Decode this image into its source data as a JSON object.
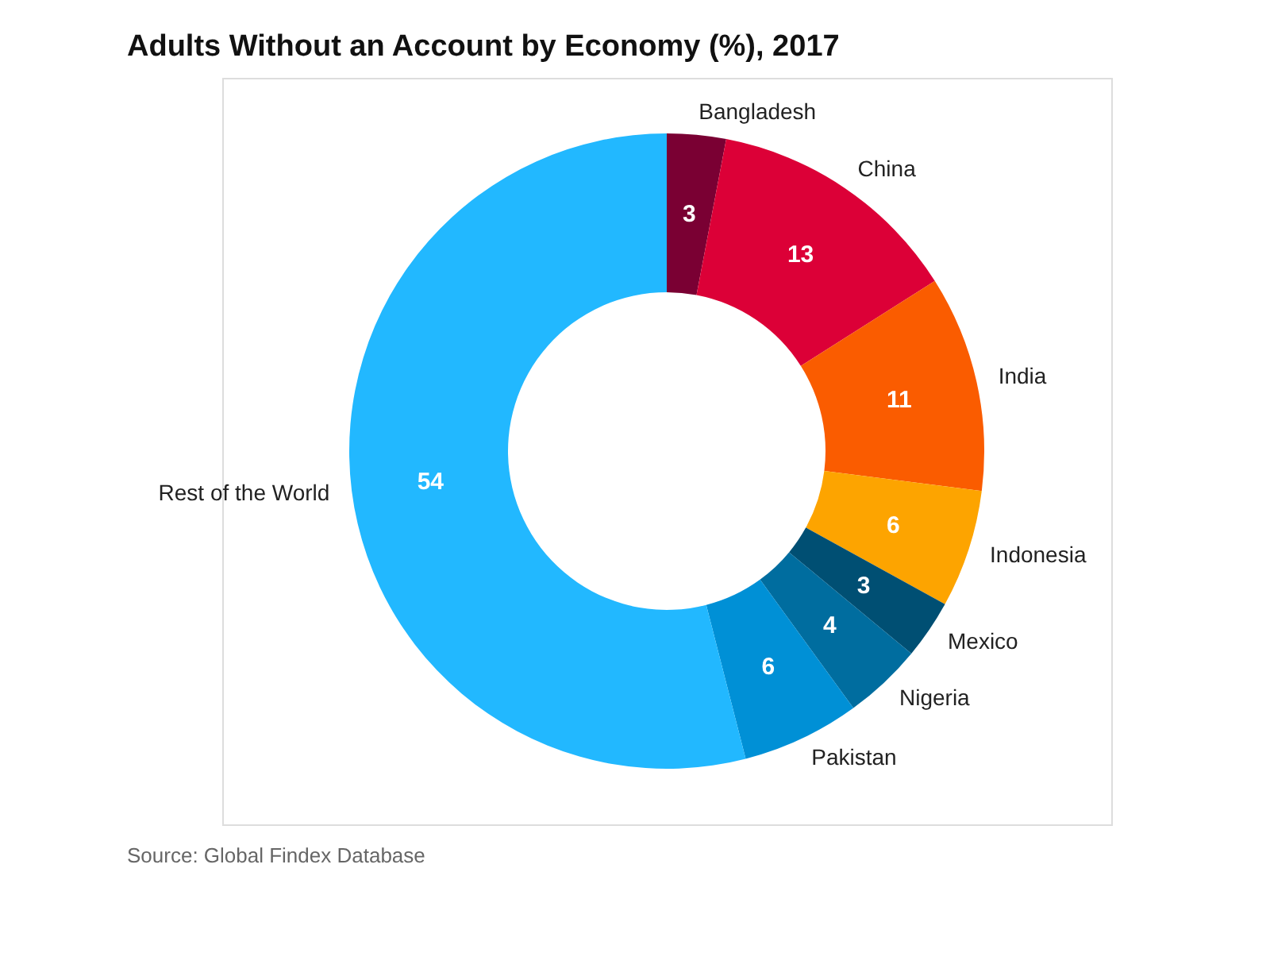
{
  "chart_data": {
    "type": "donut",
    "title": "Adults Without an Account by Economy (%), 2017",
    "categories": [
      "Bangladesh",
      "China",
      "India",
      "Indonesia",
      "Mexico",
      "Nigeria",
      "Pakistan",
      "Rest of the World"
    ],
    "values": [
      3,
      13,
      11,
      6,
      3,
      4,
      6,
      54
    ],
    "colors": [
      "#7a0033",
      "#dc0037",
      "#fa5c00",
      "#fda400",
      "#004f73",
      "#006d9f",
      "#0090d6",
      "#22b8ff"
    ],
    "data_labels": true,
    "legend": false,
    "annotations": [
      "Source: Global Findex Database"
    ]
  }
}
